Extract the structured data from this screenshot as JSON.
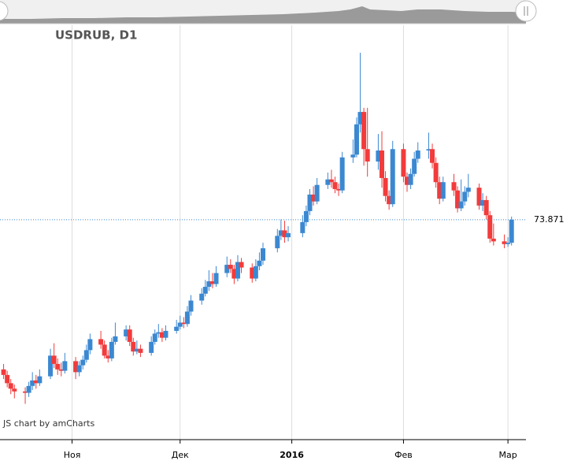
{
  "chart_data": {
    "type": "candlestick",
    "title": "USDRUB, D1",
    "credit": "JS chart by amCharts",
    "x": [
      "2015-10-13",
      "2015-10-14",
      "2015-10-15",
      "2015-10-16",
      "2015-10-19",
      "2015-10-20",
      "2015-10-21",
      "2015-10-22",
      "2015-10-23",
      "2015-10-26",
      "2015-10-27",
      "2015-10-28",
      "2015-10-29",
      "2015-10-30",
      "2015-11-02",
      "2015-11-03",
      "2015-11-04",
      "2015-11-05",
      "2015-11-06",
      "2015-11-09",
      "2015-11-10",
      "2015-11-11",
      "2015-11-12",
      "2015-11-13",
      "2015-11-16",
      "2015-11-17",
      "2015-11-18",
      "2015-11-19",
      "2015-11-20",
      "2015-11-23",
      "2015-11-24",
      "2015-11-25",
      "2015-11-26",
      "2015-11-27",
      "2015-11-30",
      "2015-12-01",
      "2015-12-02",
      "2015-12-03",
      "2015-12-04",
      "2015-12-07",
      "2015-12-08",
      "2015-12-09",
      "2015-12-10",
      "2015-12-11",
      "2015-12-14",
      "2015-12-15",
      "2015-12-16",
      "2015-12-17",
      "2015-12-18",
      "2015-12-21",
      "2015-12-22",
      "2015-12-23",
      "2015-12-24",
      "2015-12-28",
      "2015-12-29",
      "2015-12-30",
      "2015-12-31",
      "2016-01-04",
      "2016-01-05",
      "2016-01-06",
      "2016-01-07",
      "2016-01-08",
      "2016-01-11",
      "2016-01-12",
      "2016-01-13",
      "2016-01-14",
      "2016-01-15",
      "2016-01-18",
      "2016-01-19",
      "2016-01-20",
      "2016-01-21",
      "2016-01-22",
      "2016-01-25",
      "2016-01-26",
      "2016-01-27",
      "2016-01-28",
      "2016-01-29",
      "2016-02-01",
      "2016-02-02",
      "2016-02-03",
      "2016-02-04",
      "2016-02-05",
      "2016-02-08",
      "2016-02-09",
      "2016-02-10",
      "2016-02-11",
      "2016-02-12",
      "2016-02-15",
      "2016-02-16",
      "2016-02-17",
      "2016-02-18",
      "2016-02-19",
      "2016-02-22",
      "2016-02-23",
      "2016-02-24",
      "2016-02-25",
      "2016-02-26",
      "2016-02-29",
      "2016-03-01",
      "2016-03-02"
    ],
    "open": [
      63.0,
      62.6,
      62.0,
      61.6,
      61.4,
      61.3,
      61.8,
      62.2,
      62.0,
      62.5,
      64.0,
      63.4,
      63.0,
      62.9,
      63.6,
      62.8,
      63.3,
      63.7,
      64.4,
      65.2,
      64.8,
      64.0,
      63.8,
      65.0,
      65.4,
      65.9,
      65.0,
      64.3,
      64.5,
      64.2,
      65.0,
      65.6,
      65.7,
      65.3,
      65.8,
      66.1,
      66.4,
      66.3,
      67.2,
      68.0,
      68.5,
      69.0,
      69.4,
      69.2,
      70.0,
      70.6,
      70.3,
      69.6,
      70.8,
      70.4,
      69.6,
      70.5,
      70.9,
      71.8,
      72.7,
      73.1,
      72.6,
      72.9,
      73.7,
      74.5,
      75.7,
      75.2,
      76.4,
      76.8,
      76.6,
      76.1,
      76.0,
      78.4,
      78.6,
      80.8,
      81.7,
      79.0,
      78.1,
      78.9,
      76.9,
      75.6,
      75.0,
      79.0,
      77.0,
      76.4,
      77.2,
      78.3,
      78.9,
      79.0,
      78.0,
      76.6,
      75.4,
      76.6,
      76.0,
      74.7,
      75.2,
      75.9,
      76.2,
      74.9,
      75.3,
      74.2,
      72.5,
      72.3,
      72.1,
      72.2
    ],
    "high": [
      63.4,
      62.9,
      62.3,
      61.9,
      61.7,
      62.1,
      62.8,
      62.6,
      63.0,
      64.5,
      64.9,
      63.8,
      63.5,
      64.2,
      63.9,
      63.6,
      64.0,
      64.8,
      65.6,
      65.8,
      65.1,
      64.4,
      65.3,
      66.4,
      66.2,
      66.2,
      65.3,
      65.1,
      64.8,
      65.4,
      65.9,
      66.3,
      66.0,
      66.2,
      66.6,
      66.9,
      66.8,
      67.6,
      68.4,
      68.9,
      69.5,
      70.2,
      70.0,
      70.5,
      71.2,
      71.0,
      70.6,
      71.3,
      71.1,
      70.7,
      71.0,
      71.5,
      72.2,
      73.2,
      73.9,
      73.8,
      73.4,
      74.2,
      74.9,
      76.1,
      76.3,
      76.9,
      77.3,
      77.5,
      77.0,
      76.5,
      78.8,
      79.7,
      81.3,
      86.0,
      82.0,
      82.0,
      80.1,
      80.3,
      77.4,
      76.0,
      79.6,
      79.4,
      77.3,
      77.6,
      78.8,
      79.5,
      80.2,
      79.4,
      78.4,
      77.0,
      77.0,
      77.2,
      76.3,
      76.8,
      76.3,
      77.2,
      76.5,
      75.8,
      75.6,
      74.5,
      73.6,
      72.8,
      72.6,
      74.1
    ],
    "low": [
      62.3,
      61.7,
      61.2,
      60.9,
      60.5,
      61.0,
      61.5,
      61.6,
      61.8,
      62.3,
      63.1,
      62.6,
      62.5,
      62.7,
      62.3,
      62.5,
      63.0,
      63.5,
      64.1,
      64.5,
      63.8,
      63.5,
      63.6,
      64.8,
      65.1,
      64.7,
      64.0,
      64.1,
      63.9,
      64.0,
      64.8,
      65.3,
      65.0,
      65.1,
      65.6,
      65.9,
      66.0,
      66.1,
      66.9,
      67.7,
      68.3,
      68.7,
      68.9,
      69.0,
      69.7,
      70.0,
      69.2,
      69.4,
      70.0,
      69.3,
      69.4,
      70.2,
      70.6,
      71.5,
      72.4,
      72.2,
      72.3,
      72.6,
      73.4,
      74.2,
      74.9,
      75.0,
      76.1,
      76.2,
      75.8,
      75.6,
      75.8,
      78.0,
      78.4,
      80.2,
      77.8,
      77.0,
      77.5,
      76.2,
      75.2,
      74.6,
      74.8,
      76.6,
      75.9,
      76.1,
      77.0,
      78.0,
      78.3,
      77.6,
      76.2,
      75.0,
      75.2,
      75.6,
      74.4,
      74.5,
      74.9,
      75.5,
      74.6,
      74.5,
      73.9,
      72.2,
      72.0,
      71.8,
      71.9,
      72.0
    ],
    "close": [
      62.6,
      62.0,
      61.6,
      61.4,
      61.3,
      61.8,
      62.2,
      62.0,
      62.5,
      64.0,
      63.4,
      63.0,
      62.9,
      63.6,
      62.8,
      63.3,
      63.7,
      64.4,
      65.2,
      64.8,
      64.0,
      63.8,
      65.0,
      65.4,
      65.9,
      65.0,
      64.3,
      64.5,
      64.2,
      65.0,
      65.6,
      65.7,
      65.3,
      65.8,
      66.1,
      66.4,
      66.3,
      67.2,
      68.0,
      68.5,
      69.0,
      69.4,
      69.2,
      70.0,
      70.6,
      70.3,
      69.6,
      70.8,
      70.4,
      69.6,
      70.5,
      70.9,
      71.8,
      72.7,
      73.1,
      72.6,
      72.9,
      73.7,
      74.5,
      75.7,
      75.2,
      76.4,
      76.8,
      76.6,
      76.1,
      76.0,
      78.4,
      78.6,
      80.8,
      81.7,
      79.0,
      78.1,
      78.9,
      76.9,
      75.6,
      75.0,
      79.0,
      77.0,
      76.4,
      77.2,
      78.3,
      78.9,
      79.0,
      78.0,
      76.6,
      75.4,
      76.6,
      76.0,
      74.7,
      75.2,
      75.9,
      76.2,
      74.9,
      75.3,
      74.2,
      72.5,
      72.3,
      72.1,
      72.2,
      73.871
    ],
    "up_color": "#3b88d1",
    "down_color": "#f23b3b",
    "xlim": [
      "2015-10-12",
      "2016-03-06"
    ],
    "ylim": [
      57.9,
      88.0
    ],
    "xticks": [
      {
        "value": "2015-11-01",
        "label": "Ноя"
      },
      {
        "value": "2015-12-01",
        "label": "Дек"
      },
      {
        "value": "2016-01-01",
        "label": "2016"
      },
      {
        "value": "2016-02-01",
        "label": "Фев"
      },
      {
        "value": "2016-03-01",
        "label": "Мар"
      }
    ],
    "grid": true
  }
}
